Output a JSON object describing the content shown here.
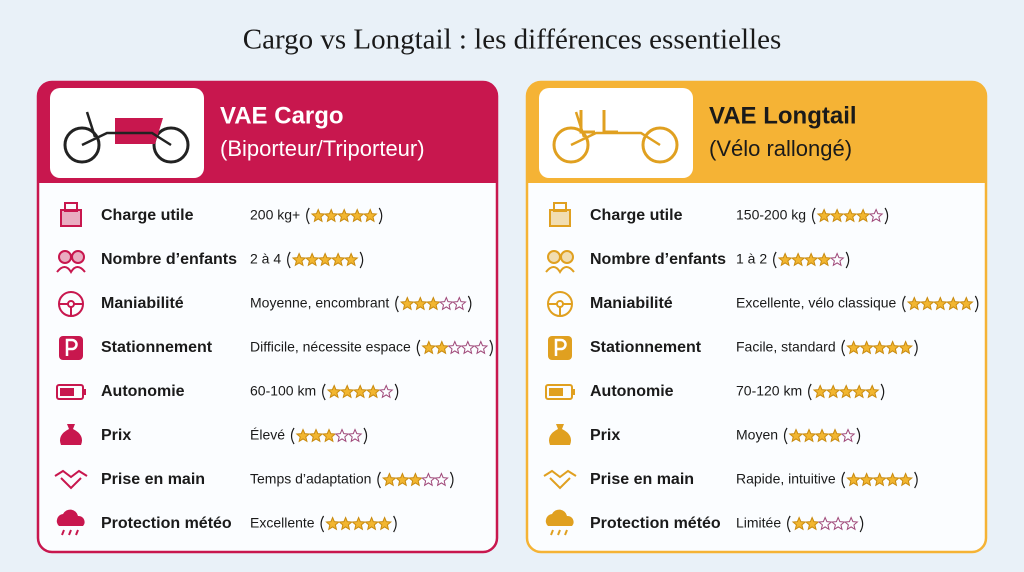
{
  "title": "Cargo vs Longtail : les différences essentielles",
  "panels": [
    {
      "title": "VAE Cargo",
      "subtitle": "(Biporteur/Triporteur)",
      "color": "#c8174e",
      "rows": [
        {
          "label": "Charge utile",
          "detail": "200 kg+",
          "rating": 5
        },
        {
          "label": "Nombre d’enfants",
          "detail": "2 à 4",
          "rating": 5
        },
        {
          "label": "Maniabilité",
          "detail": "Moyenne, encombrant",
          "rating": 3
        },
        {
          "label": "Stationnement",
          "detail": "Difficile, nécessite espace",
          "rating": 2
        },
        {
          "label": "Autonomie",
          "detail": "60-100 km",
          "rating": 4
        },
        {
          "label": "Prix",
          "detail": "Élevé",
          "rating": 3
        },
        {
          "label": "Prise en main",
          "detail": "Temps d’adaptation",
          "rating": 3
        },
        {
          "label": "Protection météo",
          "detail": "Excellente",
          "rating": 5
        }
      ]
    },
    {
      "title": "VAE Longtail",
      "subtitle": "(Vélo rallongé)",
      "color": "#f5b335",
      "rows": [
        {
          "label": "Charge utile",
          "detail": "150-200 kg",
          "rating": 4
        },
        {
          "label": "Nombre d’enfants",
          "detail": "1 à 2",
          "rating": 4
        },
        {
          "label": "Maniabilité",
          "detail": "Excellente, vélo classique",
          "rating": 5
        },
        {
          "label": "Stationnement",
          "detail": "Facile, standard",
          "rating": 5
        },
        {
          "label": "Autonomie",
          "detail": "70-120 km",
          "rating": 5
        },
        {
          "label": "Prix",
          "detail": "Moyen",
          "rating": 4
        },
        {
          "label": "Prise en main",
          "detail": "Rapide, intuitive",
          "rating": 5
        },
        {
          "label": "Protection météo",
          "detail": "Limitée",
          "rating": 2
        }
      ]
    }
  ],
  "max_rating": 5
}
